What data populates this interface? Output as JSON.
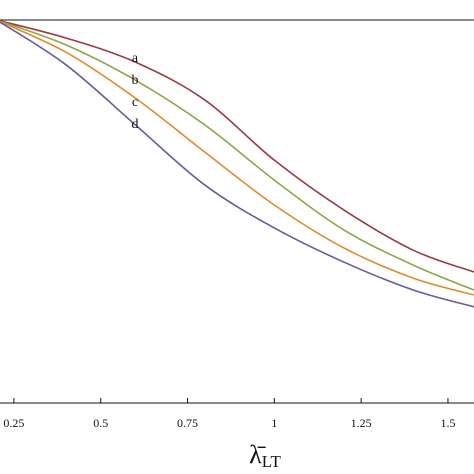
{
  "chart_data": {
    "type": "line",
    "x_label": "λ̄",
    "x_label_subscript": "LT",
    "x": [
      0.2,
      0.4,
      0.6,
      0.8,
      1.0,
      1.2,
      1.4,
      1.575
    ],
    "series": [
      {
        "name": "a",
        "color": "#9b3a45",
        "values": [
          1,
          0.953,
          0.89,
          0.791,
          0.634,
          0.504,
          0.399,
          0.342
        ]
      },
      {
        "name": "b",
        "color": "#8aa84a",
        "values": [
          1,
          0.935,
          0.843,
          0.726,
          0.582,
          0.452,
          0.36,
          0.295
        ]
      },
      {
        "name": "c",
        "color": "#e08a2e",
        "values": [
          1,
          0.916,
          0.796,
          0.655,
          0.517,
          0.405,
          0.326,
          0.282
        ]
      },
      {
        "name": "d",
        "color": "#6a5aa0",
        "values": [
          1,
          0.883,
          0.726,
          0.569,
          0.457,
          0.368,
          0.295,
          0.251
        ]
      }
    ],
    "xlim": [
      0.21,
      1.575
    ],
    "ylim": [
      0,
      1
    ],
    "xticks": [
      0.25,
      0.5,
      0.75,
      1,
      1.25,
      1.5
    ]
  }
}
